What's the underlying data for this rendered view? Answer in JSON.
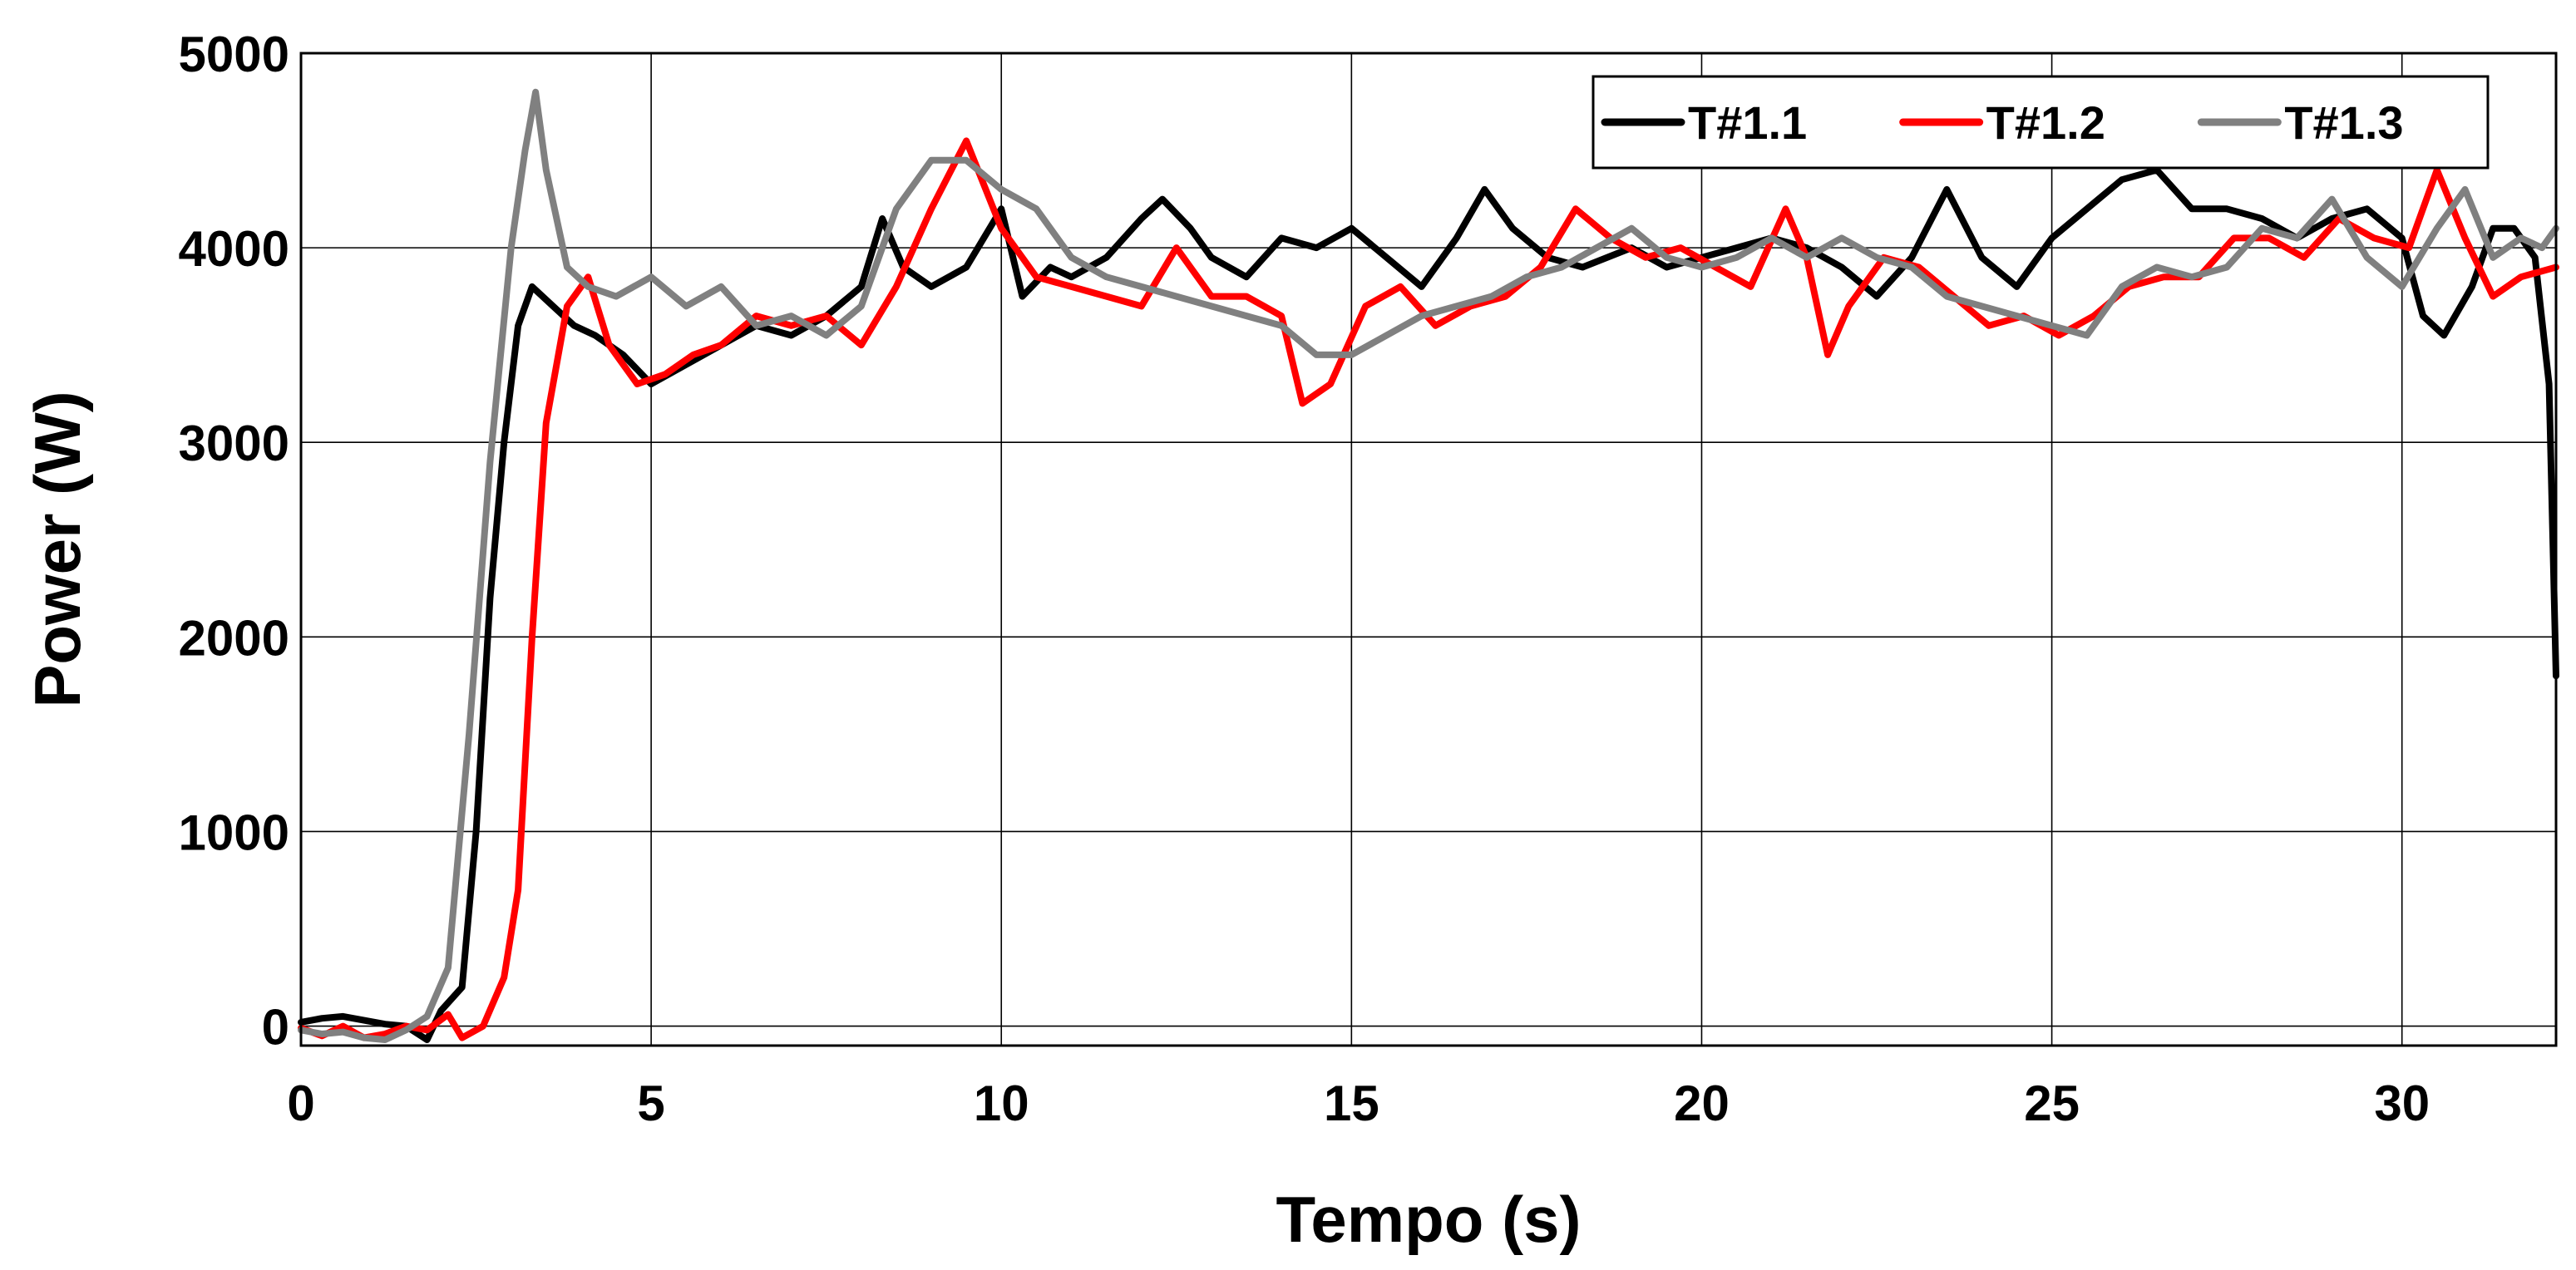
{
  "chart_data": {
    "type": "line",
    "title": "",
    "xlabel": "Tempo (s)",
    "ylabel": "Power (W)",
    "xlim": [
      0,
      32.2
    ],
    "ylim": [
      -100,
      5000
    ],
    "xticks": [
      0,
      5,
      10,
      15,
      20,
      25,
      30
    ],
    "xtick_labels": [
      "0",
      "5",
      "10",
      "15",
      "20",
      "25",
      "30"
    ],
    "yticks": [
      0,
      1000,
      2000,
      3000,
      4000,
      5000
    ],
    "ytick_labels": [
      "0",
      "1000",
      "2000",
      "3000",
      "4000",
      "5000"
    ],
    "grid": true,
    "legend": {
      "position": "top-right",
      "orientation": "horizontal"
    },
    "series": [
      {
        "name": "T#1.1",
        "color": "#000000",
        "points": [
          [
            0,
            20
          ],
          [
            0.3,
            40
          ],
          [
            0.6,
            50
          ],
          [
            0.9,
            30
          ],
          [
            1.2,
            10
          ],
          [
            1.5,
            0
          ],
          [
            1.8,
            -70
          ],
          [
            2.0,
            80
          ],
          [
            2.3,
            200
          ],
          [
            2.5,
            1000
          ],
          [
            2.7,
            2200
          ],
          [
            2.9,
            3000
          ],
          [
            3.1,
            3600
          ],
          [
            3.3,
            3800
          ],
          [
            3.6,
            3700
          ],
          [
            3.9,
            3600
          ],
          [
            4.2,
            3550
          ],
          [
            4.6,
            3450
          ],
          [
            5.0,
            3300
          ],
          [
            5.5,
            3400
          ],
          [
            6.0,
            3500
          ],
          [
            6.5,
            3600
          ],
          [
            7.0,
            3550
          ],
          [
            7.5,
            3650
          ],
          [
            8.0,
            3800
          ],
          [
            8.3,
            4150
          ],
          [
            8.6,
            3900
          ],
          [
            9.0,
            3800
          ],
          [
            9.5,
            3900
          ],
          [
            10.0,
            4200
          ],
          [
            10.3,
            3750
          ],
          [
            10.7,
            3900
          ],
          [
            11.0,
            3850
          ],
          [
            11.5,
            3950
          ],
          [
            12.0,
            4150
          ],
          [
            12.3,
            4250
          ],
          [
            12.7,
            4100
          ],
          [
            13.0,
            3950
          ],
          [
            13.5,
            3850
          ],
          [
            14.0,
            4050
          ],
          [
            14.5,
            4000
          ],
          [
            15.0,
            4100
          ],
          [
            15.5,
            3950
          ],
          [
            16.0,
            3800
          ],
          [
            16.5,
            4050
          ],
          [
            16.9,
            4300
          ],
          [
            17.3,
            4100
          ],
          [
            17.8,
            3950
          ],
          [
            18.3,
            3900
          ],
          [
            19.0,
            4000
          ],
          [
            19.5,
            3900
          ],
          [
            20.0,
            3950
          ],
          [
            20.5,
            4000
          ],
          [
            21.0,
            4050
          ],
          [
            21.5,
            4000
          ],
          [
            22.0,
            3900
          ],
          [
            22.5,
            3750
          ],
          [
            23.0,
            3950
          ],
          [
            23.5,
            4300
          ],
          [
            24.0,
            3950
          ],
          [
            24.5,
            3800
          ],
          [
            25.0,
            4050
          ],
          [
            25.5,
            4200
          ],
          [
            26.0,
            4350
          ],
          [
            26.5,
            4400
          ],
          [
            27.0,
            4200
          ],
          [
            27.5,
            4200
          ],
          [
            28.0,
            4150
          ],
          [
            28.5,
            4050
          ],
          [
            29.0,
            4150
          ],
          [
            29.5,
            4200
          ],
          [
            30.0,
            4050
          ],
          [
            30.3,
            3650
          ],
          [
            30.6,
            3550
          ],
          [
            31.0,
            3800
          ],
          [
            31.3,
            4100
          ],
          [
            31.6,
            4100
          ],
          [
            31.9,
            3950
          ],
          [
            32.1,
            3300
          ],
          [
            32.2,
            1800
          ]
        ]
      },
      {
        "name": "T#1.2",
        "color": "#ff0000",
        "points": [
          [
            0,
            -10
          ],
          [
            0.3,
            -50
          ],
          [
            0.6,
            0
          ],
          [
            0.9,
            -60
          ],
          [
            1.2,
            -40
          ],
          [
            1.5,
            0
          ],
          [
            1.8,
            -20
          ],
          [
            2.1,
            60
          ],
          [
            2.3,
            -60
          ],
          [
            2.6,
            0
          ],
          [
            2.9,
            250
          ],
          [
            3.1,
            700
          ],
          [
            3.3,
            2000
          ],
          [
            3.5,
            3100
          ],
          [
            3.8,
            3700
          ],
          [
            4.1,
            3850
          ],
          [
            4.4,
            3500
          ],
          [
            4.8,
            3300
          ],
          [
            5.2,
            3350
          ],
          [
            5.6,
            3450
          ],
          [
            6.0,
            3500
          ],
          [
            6.5,
            3650
          ],
          [
            7.0,
            3600
          ],
          [
            7.5,
            3650
          ],
          [
            8.0,
            3500
          ],
          [
            8.5,
            3800
          ],
          [
            9.0,
            4200
          ],
          [
            9.5,
            4550
          ],
          [
            10.0,
            4100
          ],
          [
            10.5,
            3850
          ],
          [
            11.0,
            3800
          ],
          [
            11.5,
            3750
          ],
          [
            12.0,
            3700
          ],
          [
            12.5,
            4000
          ],
          [
            13.0,
            3750
          ],
          [
            13.5,
            3750
          ],
          [
            14.0,
            3650
          ],
          [
            14.3,
            3200
          ],
          [
            14.7,
            3300
          ],
          [
            15.2,
            3700
          ],
          [
            15.7,
            3800
          ],
          [
            16.2,
            3600
          ],
          [
            16.7,
            3700
          ],
          [
            17.2,
            3750
          ],
          [
            17.7,
            3900
          ],
          [
            18.2,
            4200
          ],
          [
            18.7,
            4050
          ],
          [
            19.2,
            3950
          ],
          [
            19.7,
            4000
          ],
          [
            20.2,
            3900
          ],
          [
            20.7,
            3800
          ],
          [
            21.2,
            4200
          ],
          [
            21.5,
            3950
          ],
          [
            21.8,
            3450
          ],
          [
            22.1,
            3700
          ],
          [
            22.6,
            3950
          ],
          [
            23.1,
            3900
          ],
          [
            23.6,
            3750
          ],
          [
            24.1,
            3600
          ],
          [
            24.6,
            3650
          ],
          [
            25.1,
            3550
          ],
          [
            25.6,
            3650
          ],
          [
            26.1,
            3800
          ],
          [
            26.6,
            3850
          ],
          [
            27.1,
            3850
          ],
          [
            27.6,
            4050
          ],
          [
            28.1,
            4050
          ],
          [
            28.6,
            3950
          ],
          [
            29.1,
            4150
          ],
          [
            29.6,
            4050
          ],
          [
            30.1,
            4000
          ],
          [
            30.5,
            4400
          ],
          [
            30.9,
            4050
          ],
          [
            31.3,
            3750
          ],
          [
            31.7,
            3850
          ],
          [
            32.2,
            3900
          ]
        ]
      },
      {
        "name": "T#1.3",
        "color": "#808080",
        "points": [
          [
            0,
            -20
          ],
          [
            0.3,
            -40
          ],
          [
            0.6,
            -30
          ],
          [
            0.9,
            -60
          ],
          [
            1.2,
            -70
          ],
          [
            1.5,
            -20
          ],
          [
            1.8,
            50
          ],
          [
            2.1,
            300
          ],
          [
            2.4,
            1500
          ],
          [
            2.7,
            2900
          ],
          [
            3.0,
            4000
          ],
          [
            3.2,
            4500
          ],
          [
            3.35,
            4800
          ],
          [
            3.5,
            4400
          ],
          [
            3.8,
            3900
          ],
          [
            4.1,
            3800
          ],
          [
            4.5,
            3750
          ],
          [
            5.0,
            3850
          ],
          [
            5.5,
            3700
          ],
          [
            6.0,
            3800
          ],
          [
            6.5,
            3600
          ],
          [
            7.0,
            3650
          ],
          [
            7.5,
            3550
          ],
          [
            8.0,
            3700
          ],
          [
            8.5,
            4200
          ],
          [
            9.0,
            4450
          ],
          [
            9.5,
            4450
          ],
          [
            10.0,
            4300
          ],
          [
            10.5,
            4200
          ],
          [
            11.0,
            3950
          ],
          [
            11.5,
            3850
          ],
          [
            12.0,
            3800
          ],
          [
            12.5,
            3750
          ],
          [
            13.0,
            3700
          ],
          [
            13.5,
            3650
          ],
          [
            14.0,
            3600
          ],
          [
            14.5,
            3450
          ],
          [
            15.0,
            3450
          ],
          [
            15.5,
            3550
          ],
          [
            16.0,
            3650
          ],
          [
            16.5,
            3700
          ],
          [
            17.0,
            3750
          ],
          [
            17.5,
            3850
          ],
          [
            18.0,
            3900
          ],
          [
            18.5,
            4000
          ],
          [
            19.0,
            4100
          ],
          [
            19.5,
            3950
          ],
          [
            20.0,
            3900
          ],
          [
            20.5,
            3950
          ],
          [
            21.0,
            4050
          ],
          [
            21.5,
            3950
          ],
          [
            22.0,
            4050
          ],
          [
            22.5,
            3950
          ],
          [
            23.0,
            3900
          ],
          [
            23.5,
            3750
          ],
          [
            24.0,
            3700
          ],
          [
            24.5,
            3650
          ],
          [
            25.0,
            3600
          ],
          [
            25.5,
            3550
          ],
          [
            26.0,
            3800
          ],
          [
            26.5,
            3900
          ],
          [
            27.0,
            3850
          ],
          [
            27.5,
            3900
          ],
          [
            28.0,
            4100
          ],
          [
            28.5,
            4050
          ],
          [
            29.0,
            4250
          ],
          [
            29.5,
            3950
          ],
          [
            30.0,
            3800
          ],
          [
            30.5,
            4100
          ],
          [
            30.9,
            4300
          ],
          [
            31.3,
            3950
          ],
          [
            31.7,
            4050
          ],
          [
            32.0,
            4000
          ],
          [
            32.2,
            4100
          ]
        ]
      }
    ]
  }
}
